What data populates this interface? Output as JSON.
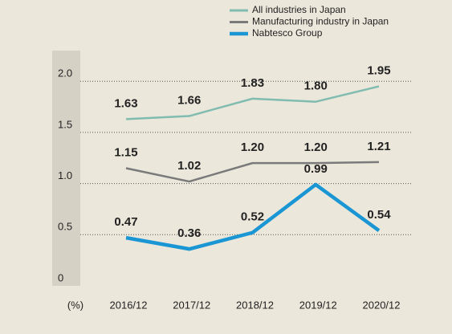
{
  "chart_data": {
    "type": "line",
    "y_label": "(%)",
    "categories": [
      "2016/12",
      "2017/12",
      "2018/12",
      "2019/12",
      "2020/12"
    ],
    "series": [
      {
        "name": "All industries in Japan",
        "color": "#80bcb0",
        "values": [
          1.63,
          1.66,
          1.83,
          1.8,
          1.95
        ],
        "value_labels": [
          "1.63",
          "1.66",
          "1.83",
          "1.80",
          "1.95"
        ]
      },
      {
        "name": "Manufacturing industry in Japan",
        "color": "#7a7a7a",
        "values": [
          1.15,
          1.02,
          1.2,
          1.2,
          1.21
        ],
        "value_labels": [
          "1.15",
          "1.02",
          "1.20",
          "1.20",
          "1.21"
        ]
      },
      {
        "name": "Nabtesco Group",
        "color": "#1a96d4",
        "values": [
          0.47,
          0.36,
          0.52,
          0.99,
          0.54
        ],
        "value_labels": [
          "0.47",
          "0.36",
          "0.52",
          "0.99",
          "0.54"
        ]
      }
    ],
    "ylim": [
      0,
      2.3
    ],
    "yticks": [
      0,
      {
        "value": 0.5,
        "label": "0.5"
      },
      {
        "value": 1,
        "label": "1.0"
      },
      {
        "value": 1.5,
        "label": "1.5"
      },
      {
        "value": 2,
        "label": "2.0"
      }
    ],
    "grid": true,
    "legend": "top-right"
  }
}
